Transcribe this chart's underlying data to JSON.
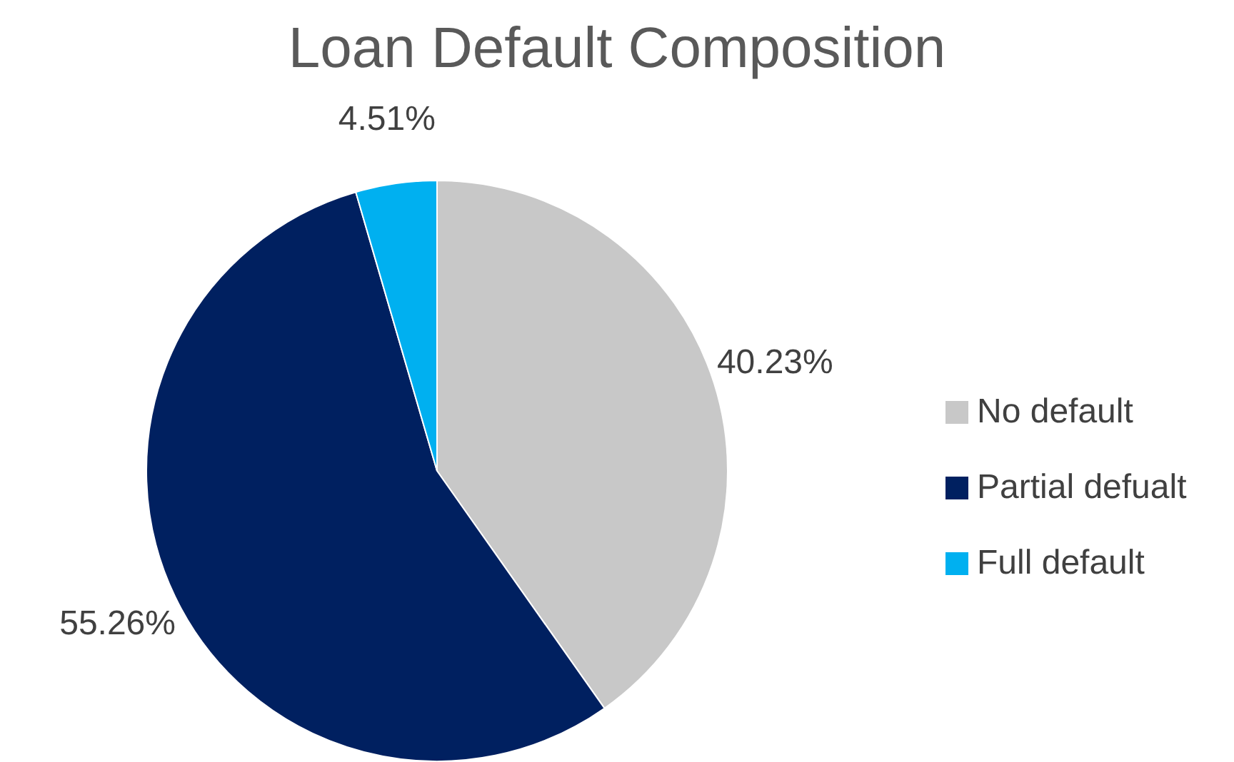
{
  "chart_data": {
    "type": "pie",
    "title": "Loan Default Composition",
    "categories": [
      "No default",
      "Partial defualt",
      "Full default"
    ],
    "values": [
      40.23,
      55.26,
      4.51
    ],
    "colors": [
      "#c8c8c8",
      "#002060",
      "#00b0f0"
    ],
    "value_labels": [
      "40.23%",
      "55.26%",
      "4.51%"
    ],
    "legend": "right"
  }
}
